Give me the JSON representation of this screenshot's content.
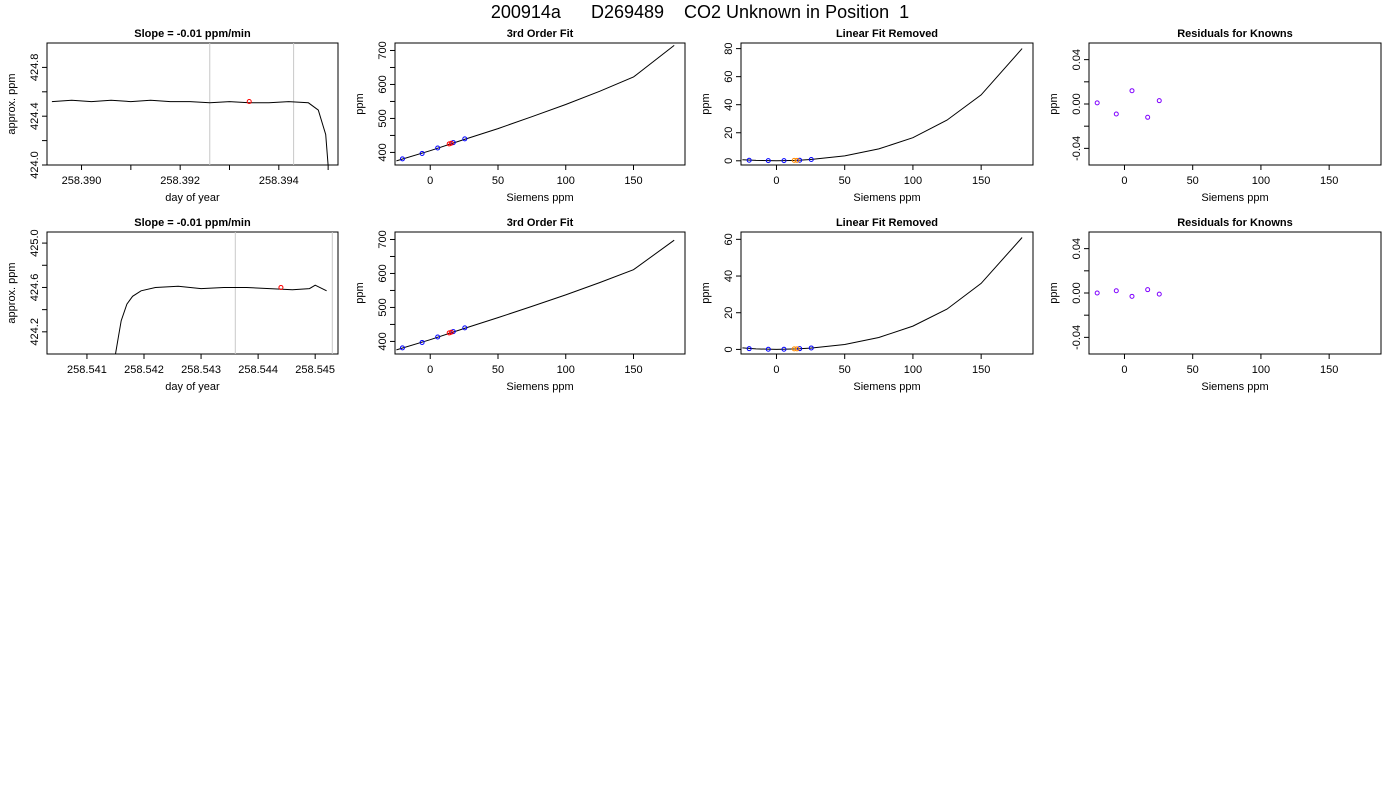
{
  "title": "200914a      D269489    CO2 Unknown in Position  1",
  "chart_data": [
    {
      "type": "line",
      "title": "Slope =  -0.01  ppm/min",
      "xlabel": "day of year",
      "ylabel": "approx. ppm",
      "xlim": [
        258.3893,
        258.3952
      ],
      "ylim": [
        424.0,
        425.0
      ],
      "xticks": [
        258.39,
        258.392,
        258.394
      ],
      "xtick_labels": [
        "258.390",
        "258.392",
        "258.394"
      ],
      "xminor": [
        258.391,
        258.393,
        258.395
      ],
      "yticks": [
        424.0,
        424.4,
        424.8
      ],
      "ytick_labels": [
        "424.0",
        "424.4",
        "424.8"
      ],
      "yminor": [
        424.2,
        424.6
      ],
      "vlines": [
        258.3926,
        258.3943
      ],
      "series": [
        {
          "x": [
            258.3894,
            258.3898,
            258.3902,
            258.3906,
            258.391,
            258.3914,
            258.3918,
            258.3922,
            258.3926,
            258.393,
            258.3934,
            258.3938,
            258.3942,
            258.3946,
            258.3948,
            258.39495,
            258.395
          ],
          "y": [
            424.52,
            424.53,
            424.52,
            424.53,
            424.52,
            424.53,
            424.52,
            424.52,
            424.51,
            424.52,
            424.51,
            424.51,
            424.52,
            424.51,
            424.45,
            424.25,
            424.0
          ]
        }
      ],
      "marker_x": 258.3934,
      "marker_y": 424.52,
      "marker_color": "#ff0000"
    },
    {
      "type": "scatter",
      "title": "3rd Order Fit",
      "xlabel": "Siemens ppm",
      "ylabel": "ppm",
      "xlim": [
        -26,
        188
      ],
      "ylim": [
        363,
        722
      ],
      "xticks": [
        0,
        50,
        100,
        150
      ],
      "xtick_labels": [
        "0",
        "50",
        "100",
        "150"
      ],
      "yticks": [
        400,
        500,
        600,
        700
      ],
      "ytick_labels": [
        "400",
        "500",
        "600",
        "700"
      ],
      "yminor": [
        450,
        550,
        650
      ],
      "curve": {
        "x": [
          -25,
          0,
          25,
          50,
          75,
          100,
          125,
          150,
          180
        ],
        "y": [
          375,
          405,
          438,
          470,
          505,
          541,
          580,
          622,
          715
        ]
      },
      "known_points": {
        "x": [
          -20.5,
          -6,
          5.5,
          17,
          25.5
        ],
        "y": [
          381,
          397,
          413,
          429,
          440
        ]
      },
      "unknown_points": {
        "x": [
          14,
          15.5
        ],
        "y": [
          425,
          427
        ]
      },
      "known_color": "#0000ff",
      "unknown_color": "#ff0000"
    },
    {
      "type": "scatter",
      "title": "Linear Fit Removed",
      "xlabel": "Siemens ppm",
      "ylabel": "ppm",
      "xlim": [
        -26,
        188
      ],
      "ylim": [
        -3,
        84
      ],
      "xticks": [
        0,
        50,
        100,
        150
      ],
      "xtick_labels": [
        "0",
        "50",
        "100",
        "150"
      ],
      "yticks": [
        0,
        20,
        40,
        60,
        80
      ],
      "ytick_labels": [
        "0",
        "20",
        "40",
        "60",
        "80"
      ],
      "curve": {
        "x": [
          -25,
          -15,
          0,
          15,
          25,
          50,
          75,
          100,
          125,
          150,
          180
        ],
        "y": [
          0.8,
          0.3,
          0,
          0.3,
          0.9,
          3.5,
          8.5,
          16.5,
          29,
          47,
          80
        ]
      },
      "known_points": {
        "x": [
          -20,
          -6,
          5.5,
          17,
          25.5
        ],
        "y": [
          0.4,
          0.1,
          0.1,
          0.4,
          0.9
        ]
      },
      "unknown_points": {
        "x": [
          13,
          15
        ],
        "y": [
          0.3,
          0.3
        ]
      },
      "known_color": "#0000ff",
      "unknown_color": "#ff8c00"
    },
    {
      "type": "scatter",
      "title": "Residuals for Knowns",
      "xlabel": "Siemens ppm",
      "ylabel": "ppm",
      "xlim": [
        -26,
        188
      ],
      "ylim": [
        -0.055,
        0.055
      ],
      "xticks": [
        0,
        50,
        100,
        150
      ],
      "xtick_labels": [
        "0",
        "50",
        "100",
        "150"
      ],
      "yticks": [
        -0.04,
        0.0,
        0.04
      ],
      "ytick_labels": [
        "-0.04",
        "0.00",
        "0.04"
      ],
      "yminor": [
        -0.02,
        0.02
      ],
      "known_points": {
        "x": [
          -20,
          -6,
          5.5,
          17,
          25.5
        ],
        "y": [
          0.001,
          -0.009,
          0.012,
          -0.012,
          0.003
        ]
      },
      "known_color": "#7f00ff"
    },
    {
      "type": "line",
      "title": "Slope =  -0.01  ppm/min",
      "xlabel": "day of year",
      "ylabel": "approx. ppm",
      "xlim": [
        258.5403,
        258.5454
      ],
      "ylim": [
        424.0,
        425.1
      ],
      "xticks": [
        258.541,
        258.542,
        258.543,
        258.544,
        258.545
      ],
      "xtick_labels": [
        "258.541",
        "258.542",
        "258.543",
        "258.544",
        "258.545"
      ],
      "yticks": [
        424.2,
        424.6,
        425.0
      ],
      "ytick_labels": [
        "424.2",
        "424.6",
        "425.0"
      ],
      "yminor": [
        424.4,
        424.8
      ],
      "vlines": [
        258.5436,
        258.5453
      ],
      "series": [
        {
          "x": [
            258.5415,
            258.54155,
            258.5416,
            258.5417,
            258.5418,
            258.54195,
            258.5422,
            258.5426,
            258.543,
            258.5434,
            258.5438,
            258.5442,
            258.5446,
            258.5449,
            258.545,
            258.5452
          ],
          "y": [
            424.0,
            424.15,
            424.3,
            424.45,
            424.52,
            424.57,
            424.6,
            424.61,
            424.59,
            424.6,
            424.6,
            424.59,
            424.58,
            424.59,
            424.62,
            424.57
          ]
        }
      ],
      "marker_x": 258.5444,
      "marker_y": 424.6,
      "marker_color": "#ff0000"
    },
    {
      "type": "scatter",
      "title": "3rd Order Fit",
      "xlabel": "Siemens ppm",
      "ylabel": "ppm",
      "xlim": [
        -26,
        188
      ],
      "ylim": [
        363,
        722
      ],
      "xticks": [
        0,
        50,
        100,
        150
      ],
      "xtick_labels": [
        "0",
        "50",
        "100",
        "150"
      ],
      "yticks": [
        400,
        500,
        600,
        700
      ],
      "ytick_labels": [
        "400",
        "500",
        "600",
        "700"
      ],
      "yminor": [
        450,
        550,
        650
      ],
      "curve": {
        "x": [
          -25,
          0,
          25,
          50,
          75,
          100,
          125,
          150,
          180
        ],
        "y": [
          375,
          405,
          438,
          470,
          503,
          537,
          573,
          611,
          698
        ]
      },
      "known_points": {
        "x": [
          -20.5,
          -6,
          5.5,
          17,
          25.5
        ],
        "y": [
          381,
          397,
          413,
          429,
          440
        ]
      },
      "unknown_points": {
        "x": [
          14,
          15.5
        ],
        "y": [
          425,
          427
        ]
      },
      "known_color": "#0000ff",
      "unknown_color": "#ff0000"
    },
    {
      "type": "scatter",
      "title": "Linear Fit Removed",
      "xlabel": "Siemens ppm",
      "ylabel": "ppm",
      "xlim": [
        -26,
        188
      ],
      "ylim": [
        -2.5,
        64
      ],
      "xticks": [
        0,
        50,
        100,
        150
      ],
      "xtick_labels": [
        "0",
        "50",
        "100",
        "150"
      ],
      "yticks": [
        0,
        20,
        40,
        60
      ],
      "ytick_labels": [
        "0",
        "20",
        "40",
        "60"
      ],
      "curve": {
        "x": [
          -25,
          -15,
          0,
          15,
          25,
          50,
          75,
          100,
          125,
          150,
          180
        ],
        "y": [
          0.8,
          0.3,
          0,
          0.3,
          0.7,
          2.7,
          6.5,
          12.7,
          22,
          36,
          61
        ]
      },
      "known_points": {
        "x": [
          -20,
          -6,
          5.5,
          17,
          25.5
        ],
        "y": [
          0.4,
          0.1,
          0.1,
          0.4,
          0.8
        ]
      },
      "unknown_points": {
        "x": [
          13,
          15
        ],
        "y": [
          0.3,
          0.3
        ]
      },
      "known_color": "#0000ff",
      "unknown_color": "#ff8c00"
    },
    {
      "type": "scatter",
      "title": "Residuals for Knowns",
      "xlabel": "Siemens ppm",
      "ylabel": "ppm",
      "xlim": [
        -26,
        188
      ],
      "ylim": [
        -0.055,
        0.055
      ],
      "xticks": [
        0,
        50,
        100,
        150
      ],
      "xtick_labels": [
        "0",
        "50",
        "100",
        "150"
      ],
      "yticks": [
        -0.04,
        0.0,
        0.04
      ],
      "ytick_labels": [
        "-0.04",
        "0.00",
        "0.04"
      ],
      "yminor": [
        -0.02,
        0.02
      ],
      "known_points": {
        "x": [
          -20,
          -6,
          5.5,
          17,
          25.5
        ],
        "y": [
          0.0,
          0.002,
          -0.003,
          0.003,
          -0.001
        ]
      },
      "known_color": "#7f00ff"
    }
  ]
}
